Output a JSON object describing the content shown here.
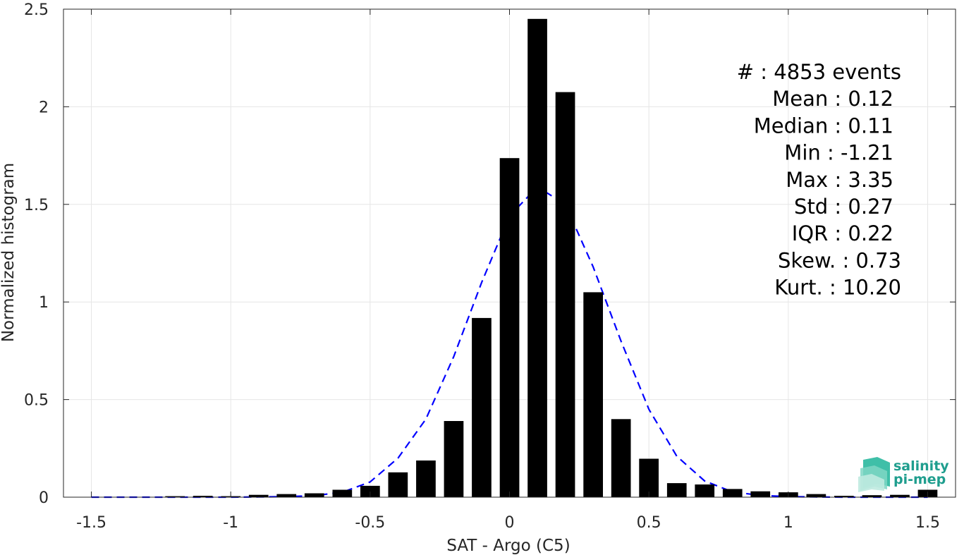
{
  "chart_data": {
    "type": "bar",
    "title": "",
    "xlabel": "SAT - Argo (C5)",
    "ylabel": "Normalized histogram",
    "xlim": [
      -1.6,
      1.6
    ],
    "ylim": [
      0,
      2.5
    ],
    "xticks": [
      -1.5,
      -1,
      -0.5,
      0,
      0.5,
      1,
      1.5
    ],
    "xtick_labels": [
      "-1.5",
      "-1",
      "-0.5",
      "0",
      "0.5",
      "1",
      "1.5"
    ],
    "yticks": [
      0,
      0.5,
      1,
      1.5,
      2,
      2.5
    ],
    "ytick_labels": [
      "0",
      "0.5",
      "1",
      "1.5",
      "2",
      "2.5"
    ],
    "grid": true,
    "bar_color": "#000000",
    "bar_width": 0.07,
    "bins": [
      -1.5,
      -1.4,
      -1.3,
      -1.2,
      -1.1,
      -1.0,
      -0.9,
      -0.8,
      -0.7,
      -0.6,
      -0.5,
      -0.4,
      -0.3,
      -0.2,
      -0.1,
      0.0,
      0.1,
      0.2,
      0.3,
      0.4,
      0.5,
      0.6,
      0.7,
      0.8,
      0.9,
      1.0,
      1.1,
      1.2,
      1.3,
      1.4,
      1.5
    ],
    "values": [
      0.0,
      0.0,
      0.0,
      0.005,
      0.007,
      0.005,
      0.012,
      0.016,
      0.02,
      0.038,
      0.058,
      0.127,
      0.188,
      0.39,
      0.918,
      1.737,
      2.45,
      2.075,
      1.05,
      0.4,
      0.197,
      0.072,
      0.065,
      0.042,
      0.03,
      0.025,
      0.016,
      0.007,
      0.01,
      0.012,
      0.038
    ],
    "fit": {
      "name": "",
      "style": "dashed",
      "color": "#0000ff",
      "x": [
        -1.5,
        -1.4,
        -1.3,
        -1.2,
        -1.1,
        -1.0,
        -0.9,
        -0.8,
        -0.7,
        -0.6,
        -0.5,
        -0.4,
        -0.3,
        -0.2,
        -0.1,
        0.0,
        0.1,
        0.2,
        0.3,
        0.4,
        0.5,
        0.6,
        0.7,
        0.8,
        0.9,
        1.0,
        1.1,
        1.2,
        1.3,
        1.4,
        1.5
      ],
      "y": [
        0.0,
        0.0,
        0.0,
        0.0,
        0.0,
        0.0,
        0.001,
        0.003,
        0.008,
        0.025,
        0.078,
        0.2,
        0.4,
        0.72,
        1.1,
        1.44,
        1.59,
        1.5,
        1.18,
        0.8,
        0.45,
        0.21,
        0.083,
        0.027,
        0.009,
        0.003,
        0.001,
        0.0,
        0.0,
        0.0,
        0.0
      ]
    },
    "stats": [
      "#  : 4853 events",
      "Mean : 0.12",
      "Median : 0.11",
      "Min : -1.21",
      "Max : 3.35",
      "Std : 0.27",
      "IQR : 0.22",
      "Skew. : 0.73",
      "Kurt. : 10.20"
    ]
  },
  "logo": {
    "line1": "salinity",
    "line2": "pi-mep"
  }
}
